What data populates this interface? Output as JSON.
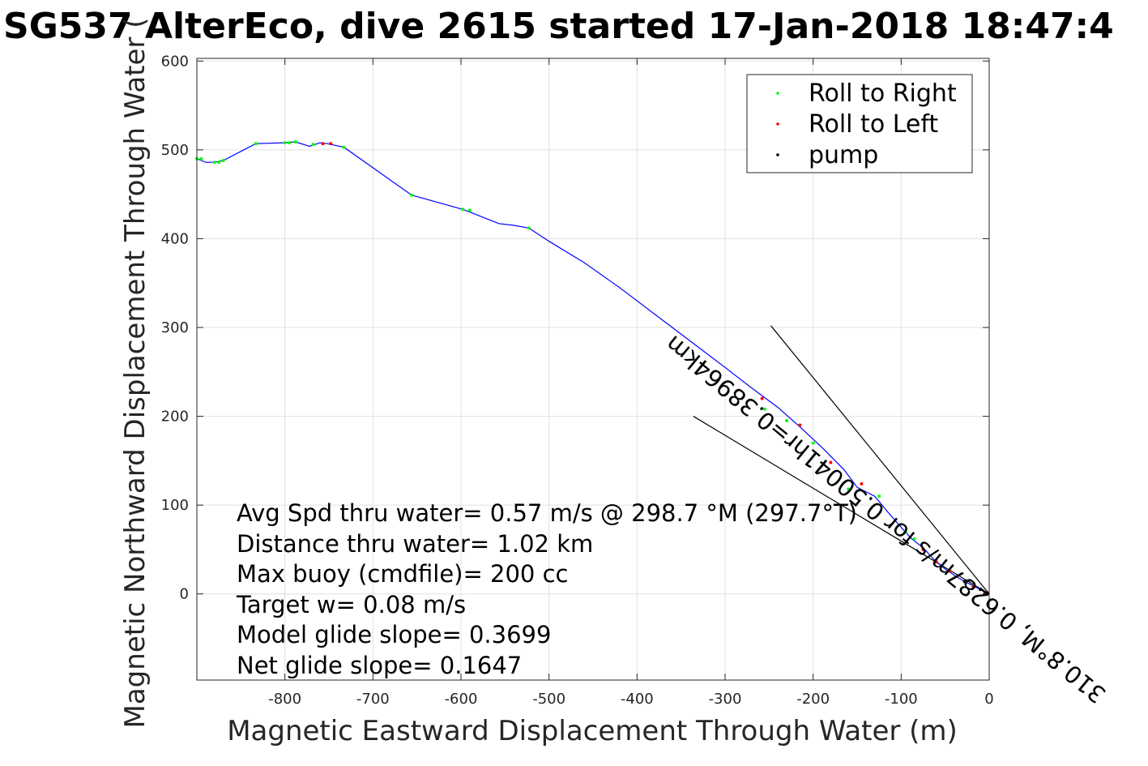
{
  "chart_data": {
    "type": "line",
    "title": "SG537 AlterEco, dive 2615 started 17-Jan-2018 18:47:4",
    "xlabel": "Magnetic Eastward Displacement Through Water (m)",
    "ylabel": "Magnetic Northward Displacement Through Water (",
    "xlim": [
      -900,
      0
    ],
    "ylim": [
      -97,
      603
    ],
    "xticks": [
      -800,
      -700,
      -600,
      -500,
      -400,
      -300,
      -200,
      -100,
      0
    ],
    "yticks": [
      0,
      100,
      200,
      300,
      400,
      500,
      600
    ],
    "grid": true,
    "legend_position": "top-right",
    "legend": [
      {
        "label": "Roll to Right",
        "color": "#00ff00"
      },
      {
        "label": "Roll to Left",
        "color": "#ff0000"
      },
      {
        "label": "pump",
        "color": "#000000"
      }
    ],
    "track": {
      "color": "#0000ff",
      "x": [
        0,
        -20,
        -35,
        -50,
        -62,
        -75,
        -88,
        -100,
        -115,
        -130,
        -150,
        -165,
        -190,
        -215,
        -240,
        -270,
        -300,
        -340,
        -380,
        -420,
        -460,
        -500,
        -523,
        -540,
        -557,
        -590,
        -598,
        -656,
        -733,
        -752,
        -760,
        -772,
        -788,
        -800,
        -833,
        -870,
        -880,
        -890,
        -895,
        -900
      ],
      "y": [
        0,
        10,
        18,
        28,
        38,
        52,
        62,
        75,
        92,
        110,
        120,
        140,
        165,
        188,
        210,
        232,
        255,
        285,
        315,
        345,
        373,
        397,
        412,
        415,
        417,
        430,
        433,
        449,
        503,
        507,
        508,
        504,
        509,
        508,
        507,
        488,
        486,
        486,
        488,
        490
      ]
    },
    "roll_right_points": {
      "x": [
        -523,
        -590,
        -598,
        -656,
        -733,
        -768,
        -788,
        -795,
        -800,
        -833,
        -870,
        -875,
        -880,
        -895,
        -900,
        -85,
        -95,
        -125,
        -160,
        -200,
        -230,
        -255
      ],
      "y": [
        412,
        432,
        433,
        449,
        503,
        506,
        509,
        508,
        508,
        507,
        488,
        486,
        486,
        490,
        490,
        62,
        70,
        110,
        118,
        170,
        195,
        208
      ]
    },
    "roll_left_points": {
      "x": [
        -5,
        -18,
        -45,
        -60,
        -75,
        -145,
        -180,
        -215,
        -258,
        -757,
        -748
      ],
      "y": [
        2,
        8,
        26,
        36,
        50,
        124,
        148,
        190,
        220,
        507,
        507
      ]
    },
    "pump_points": {
      "x": [
        -2,
        -10,
        -28
      ],
      "y": [
        1,
        5,
        14
      ]
    },
    "wedge_lines": [
      {
        "x": [
          0,
          -248
        ],
        "y": [
          0,
          302
        ]
      },
      {
        "x": [
          0,
          -336
        ],
        "y": [
          0,
          200
        ]
      }
    ],
    "annotations": [
      {
        "text": "310.8°M, 0.6287m/s for 0.50041hr=0.38964km",
        "anchor_x": -112,
        "anchor_y": 91,
        "rotation_deg": 219.5
      }
    ],
    "stats": [
      "Avg Spd thru water=  0.57 m/s @ 298.7 °M (297.7°T)",
      "Distance thru water=  1.02 km",
      "Max buoy (cmdfile)= 200 cc",
      "Target w= 0.08 m/s",
      "Model glide slope= 0.3699",
      "Net glide slope= 0.1647"
    ]
  }
}
